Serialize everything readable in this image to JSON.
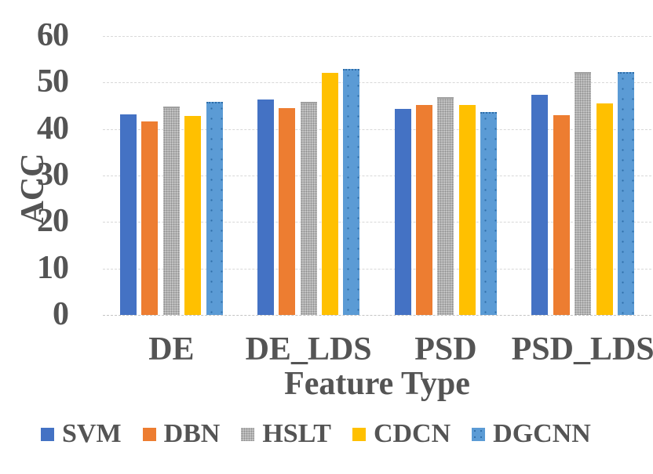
{
  "chart_data": {
    "type": "bar",
    "title": "",
    "xlabel": "Feature Type",
    "ylabel": "ACC",
    "ylim": [
      0,
      60
    ],
    "yticks": [
      0,
      10,
      20,
      30,
      40,
      50,
      60
    ],
    "grid": true,
    "legend_position": "bottom",
    "categories": [
      "DE",
      "DE_LDS",
      "PSD",
      "PSD_LDS"
    ],
    "series": [
      {
        "name": "SVM",
        "color": "#4472C4",
        "fill_pattern": "solid",
        "values": [
          43.1,
          46.3,
          44.3,
          47.4
        ]
      },
      {
        "name": "DBN",
        "color": "#ED7D31",
        "fill_pattern": "solid",
        "values": [
          41.6,
          44.5,
          45.2,
          42.9
        ]
      },
      {
        "name": "HSLT",
        "color": "#C2C2C2",
        "fill_pattern": "dots-dense",
        "values": [
          44.8,
          45.8,
          46.9,
          52.2
        ]
      },
      {
        "name": "CDCN",
        "color": "#FFC000",
        "fill_pattern": "solid",
        "values": [
          42.8,
          52.0,
          45.2,
          45.5
        ]
      },
      {
        "name": "DGCNN",
        "color": "#5B9BD5",
        "fill_pattern": "dots-sparse",
        "values": [
          45.9,
          53.0,
          43.7,
          52.2
        ]
      }
    ]
  },
  "colors": {
    "text": "#545454",
    "gridline": "#D8D8D8",
    "background": "#FFFFFF"
  }
}
